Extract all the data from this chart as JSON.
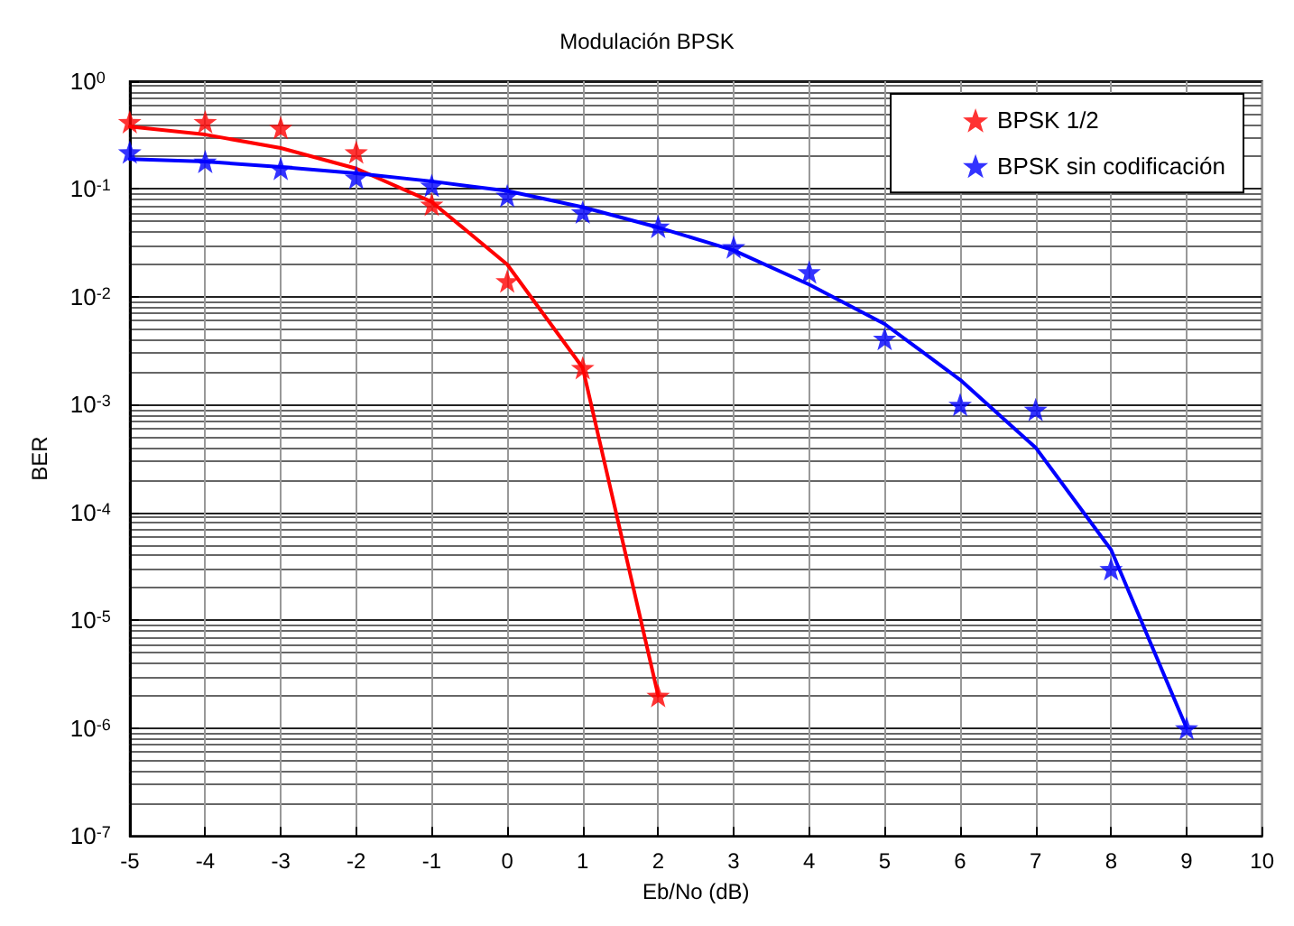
{
  "chart_data": {
    "type": "scatter",
    "title": "Modulación BPSK",
    "xlabel": "Eb/No (dB)",
    "ylabel": "BER",
    "log": "y",
    "grid": true,
    "legend": "top right",
    "marker": "star",
    "x": [
      -5,
      -4,
      -3,
      -2,
      -1,
      0,
      1,
      2,
      3,
      4,
      5,
      6,
      7,
      8,
      9
    ],
    "xlim": [
      -5,
      10
    ],
    "xticks": [
      -5,
      -4,
      -3,
      -2,
      -1,
      0,
      1,
      2,
      3,
      4,
      5,
      6,
      7,
      8,
      9,
      10
    ],
    "ylim": [
      1e-07,
      1
    ],
    "yticks": [
      {
        "value": 1e-07,
        "label": "10$^{-7}$"
      },
      {
        "value": 1e-06,
        "label": "10$^{-6}$"
      },
      {
        "value": 1e-05,
        "label": "10$^{-5}$"
      },
      {
        "value": 0.0001,
        "label": "10$^{-4}$"
      },
      {
        "value": 0.001,
        "label": "10$^{-3}$"
      },
      {
        "value": 0.01,
        "label": "10$^{-2}$"
      },
      {
        "value": 0.1,
        "label": "10$^{-1}$"
      },
      {
        "value": 1,
        "label": "10$^{0}$"
      }
    ],
    "series": [
      {
        "name": "BPSK 1/2",
        "color": "#ff0000",
        "values": [
          0.42,
          0.42,
          0.37,
          0.22,
          0.072,
          0.014,
          0.0022,
          2e-06,
          null,
          null,
          null,
          null,
          null,
          null,
          null
        ]
      },
      {
        "name": "BPSK sin codificación",
        "color": "#0000ff",
        "values": [
          0.22,
          0.18,
          0.155,
          0.128,
          0.108,
          0.087,
          0.061,
          0.045,
          0.029,
          0.017,
          0.0041,
          0.001,
          0.0009,
          3e-05,
          1e-06
        ]
      },
      {
        "color": "#ff0000",
        "type": "line",
        "line_style": "solid",
        "marker": "none",
        "values": [
          0.38,
          0.32,
          0.24,
          0.155,
          0.076,
          0.02,
          0.0022,
          2e-06,
          null,
          null,
          null,
          null,
          null,
          null,
          null
        ]
      },
      {
        "color": "#0000ff",
        "type": "line",
        "line_style": "solid",
        "marker": "none",
        "values": [
          0.19,
          0.18,
          0.16,
          0.14,
          0.118,
          0.096,
          0.068,
          0.044,
          0.027,
          0.013,
          0.0056,
          0.0017,
          0.0004,
          4.5e-05,
          1e-06
        ]
      }
    ]
  }
}
